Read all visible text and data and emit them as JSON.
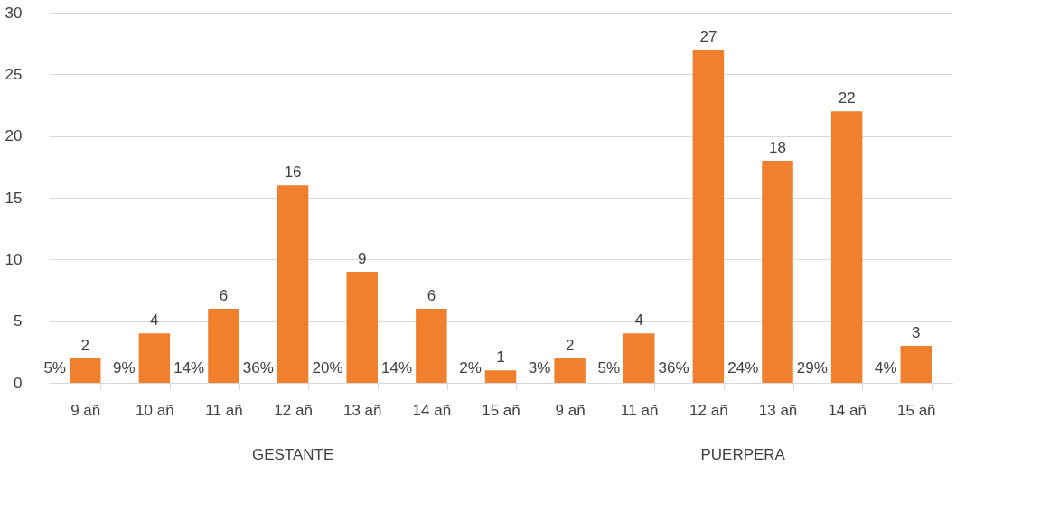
{
  "chart_data": {
    "type": "bar",
    "categories": [
      "9 añ",
      "10 añ",
      "11 añ",
      "12 añ",
      "13 añ",
      "14 añ",
      "15 añ",
      "9 añ",
      "11 añ",
      "12 añ",
      "13 añ",
      "14 añ",
      "15 añ"
    ],
    "values": [
      2,
      4,
      6,
      16,
      9,
      6,
      1,
      2,
      4,
      27,
      18,
      22,
      3
    ],
    "data_labels": true,
    "color": "#f07f2e",
    "ylim": [
      0,
      30
    ],
    "yticks": [
      0,
      5,
      10,
      15,
      20,
      25,
      30
    ],
    "grid": "y",
    "annotations": [
      "5%",
      "9%",
      "14%",
      "36%",
      "20%",
      "14%",
      "2%",
      "3%",
      "5%",
      "36%",
      "24%",
      "29%",
      "4%",
      "GESTANTE",
      "PUERPERA"
    ]
  }
}
